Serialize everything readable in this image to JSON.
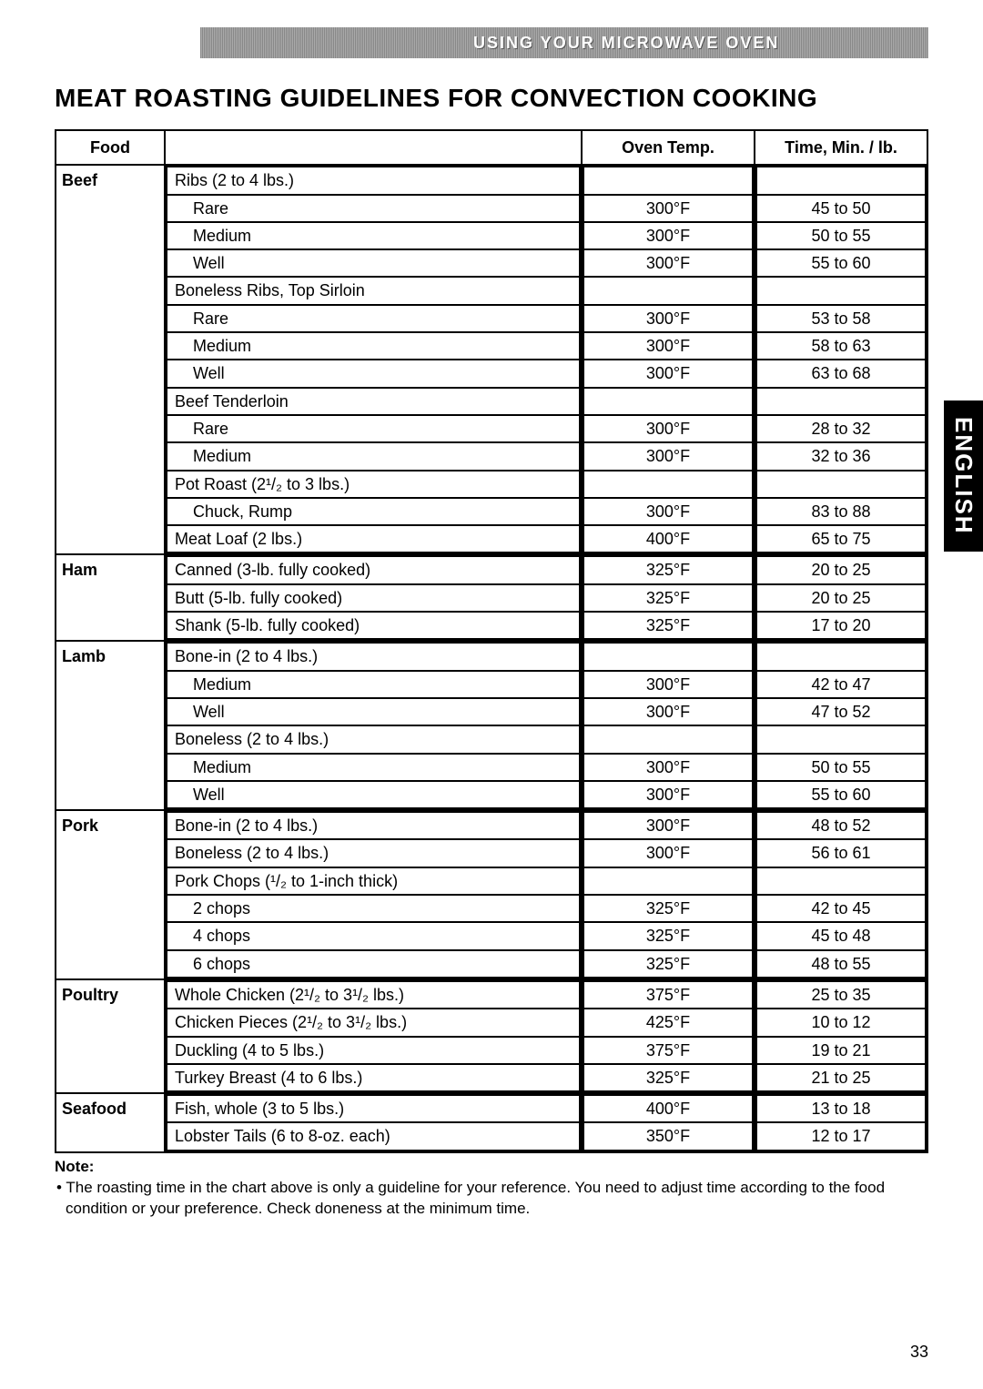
{
  "header_bar": "USING YOUR MICROWAVE OVEN",
  "title": "MEAT ROASTING GUIDELINES FOR CONVECTION COOKING",
  "columns": {
    "food": "Food",
    "temp": "Oven Temp.",
    "time": "Time, Min. / lb."
  },
  "side_tab": "ENGLISH",
  "page_number": "33",
  "note_title": "Note:",
  "note_text": "• The roasting time in the chart above is only a guideline for your reference. You need to adjust time according to the food condition or your preference. Check doneness at the minimum time.",
  "sections": [
    {
      "food": "Beef",
      "groups": [
        {
          "header": "Ribs (2 to 4 lbs.)",
          "lines": [
            {
              "label": "Rare",
              "temp": "300°F",
              "time": "45 to 50"
            },
            {
              "label": "Medium",
              "temp": "300°F",
              "time": "50 to 55"
            },
            {
              "label": "Well",
              "temp": "300°F",
              "time": "55 to 60"
            }
          ]
        },
        {
          "header": "Boneless Ribs, Top Sirloin",
          "lines": [
            {
              "label": "Rare",
              "temp": "300°F",
              "time": "53 to 58"
            },
            {
              "label": "Medium",
              "temp": "300°F",
              "time": "58 to 63"
            },
            {
              "label": "Well",
              "temp": "300°F",
              "time": "63 to 68"
            }
          ]
        },
        {
          "header": "Beef Tenderloin",
          "lines": [
            {
              "label": "Rare",
              "temp": "300°F",
              "time": "28 to 32"
            },
            {
              "label": "Medium",
              "temp": "300°F",
              "time": "32 to 36"
            }
          ]
        },
        {
          "header": "Pot Roast (2¹/₂ to 3 lbs.)",
          "lines": [
            {
              "label": "Chuck, Rump",
              "temp": "300°F",
              "time": "83 to 88"
            }
          ],
          "sep_after": true
        },
        {
          "header": null,
          "lines": [
            {
              "label": "Meat Loaf (2 lbs.)",
              "temp": "400°F",
              "time": "65 to 75",
              "no_indent": true
            }
          ]
        }
      ]
    },
    {
      "food": "Ham",
      "groups": [
        {
          "header": null,
          "sep_after": true,
          "lines": [
            {
              "label": "Canned (3-lb. fully cooked)",
              "temp": "325°F",
              "time": "20 to 25",
              "no_indent": true
            }
          ]
        },
        {
          "header": null,
          "sep_after": true,
          "lines": [
            {
              "label": "Butt (5-lb. fully cooked)",
              "temp": "325°F",
              "time": "20 to 25",
              "no_indent": true
            }
          ]
        },
        {
          "header": null,
          "lines": [
            {
              "label": "Shank (5-lb. fully cooked)",
              "temp": "325°F",
              "time": "17 to 20",
              "no_indent": true
            }
          ]
        }
      ]
    },
    {
      "food": "Lamb",
      "groups": [
        {
          "header": "Bone-in (2 to 4 lbs.)",
          "lines": [
            {
              "label": "Medium",
              "temp": "300°F",
              "time": "42 to 47"
            },
            {
              "label": "Well",
              "temp": "300°F",
              "time": "47 to 52"
            }
          ]
        },
        {
          "header": "Boneless (2 to 4 lbs.)",
          "lines": [
            {
              "label": "Medium",
              "temp": "300°F",
              "time": "50 to 55"
            },
            {
              "label": "Well",
              "temp": "300°F",
              "time": "55 to 60"
            }
          ]
        }
      ]
    },
    {
      "food": "Pork",
      "groups": [
        {
          "header": null,
          "sep_after": true,
          "lines": [
            {
              "label": "Bone-in (2 to 4 lbs.)",
              "temp": "300°F",
              "time": "48 to 52",
              "no_indent": true
            }
          ]
        },
        {
          "header": null,
          "sep_after": true,
          "lines": [
            {
              "label": "Boneless (2 to 4 lbs.)",
              "temp": "300°F",
              "time": "56 to 61",
              "no_indent": true
            }
          ]
        },
        {
          "header": "Pork Chops (¹/₂ to 1-inch thick)",
          "lines": [
            {
              "label": "2 chops",
              "temp": "325°F",
              "time": "42 to 45"
            },
            {
              "label": "4 chops",
              "temp": "325°F",
              "time": "45 to 48"
            },
            {
              "label": "6 chops",
              "temp": "325°F",
              "time": "48 to 55"
            }
          ]
        }
      ]
    },
    {
      "food": "Poultry",
      "groups": [
        {
          "header": null,
          "sep_after": true,
          "lines": [
            {
              "label": "Whole Chicken (2¹/₂ to 3¹/₂ lbs.)",
              "temp": "375°F",
              "time": "25 to 35",
              "no_indent": true
            }
          ]
        },
        {
          "header": null,
          "sep_after": true,
          "lines": [
            {
              "label": "Chicken Pieces (2¹/₂ to 3¹/₂ lbs.)",
              "temp": "425°F",
              "time": "10 to 12",
              "no_indent": true
            }
          ]
        },
        {
          "header": null,
          "sep_after": true,
          "lines": [
            {
              "label": "Duckling (4 to 5 lbs.)",
              "temp": "375°F",
              "time": "19 to 21",
              "no_indent": true
            }
          ]
        },
        {
          "header": null,
          "lines": [
            {
              "label": "Turkey Breast (4 to 6 lbs.)",
              "temp": "325°F",
              "time": "21 to 25",
              "no_indent": true
            }
          ]
        }
      ]
    },
    {
      "food": "Seafood",
      "groups": [
        {
          "header": null,
          "sep_after": true,
          "lines": [
            {
              "label": "Fish, whole (3 to 5 lbs.)",
              "temp": "400°F",
              "time": "13 to 18",
              "no_indent": true
            }
          ]
        },
        {
          "header": null,
          "lines": [
            {
              "label": "Lobster Tails (6 to 8-oz. each)",
              "temp": "350°F",
              "time": "12 to 17",
              "no_indent": true
            }
          ]
        }
      ]
    }
  ]
}
